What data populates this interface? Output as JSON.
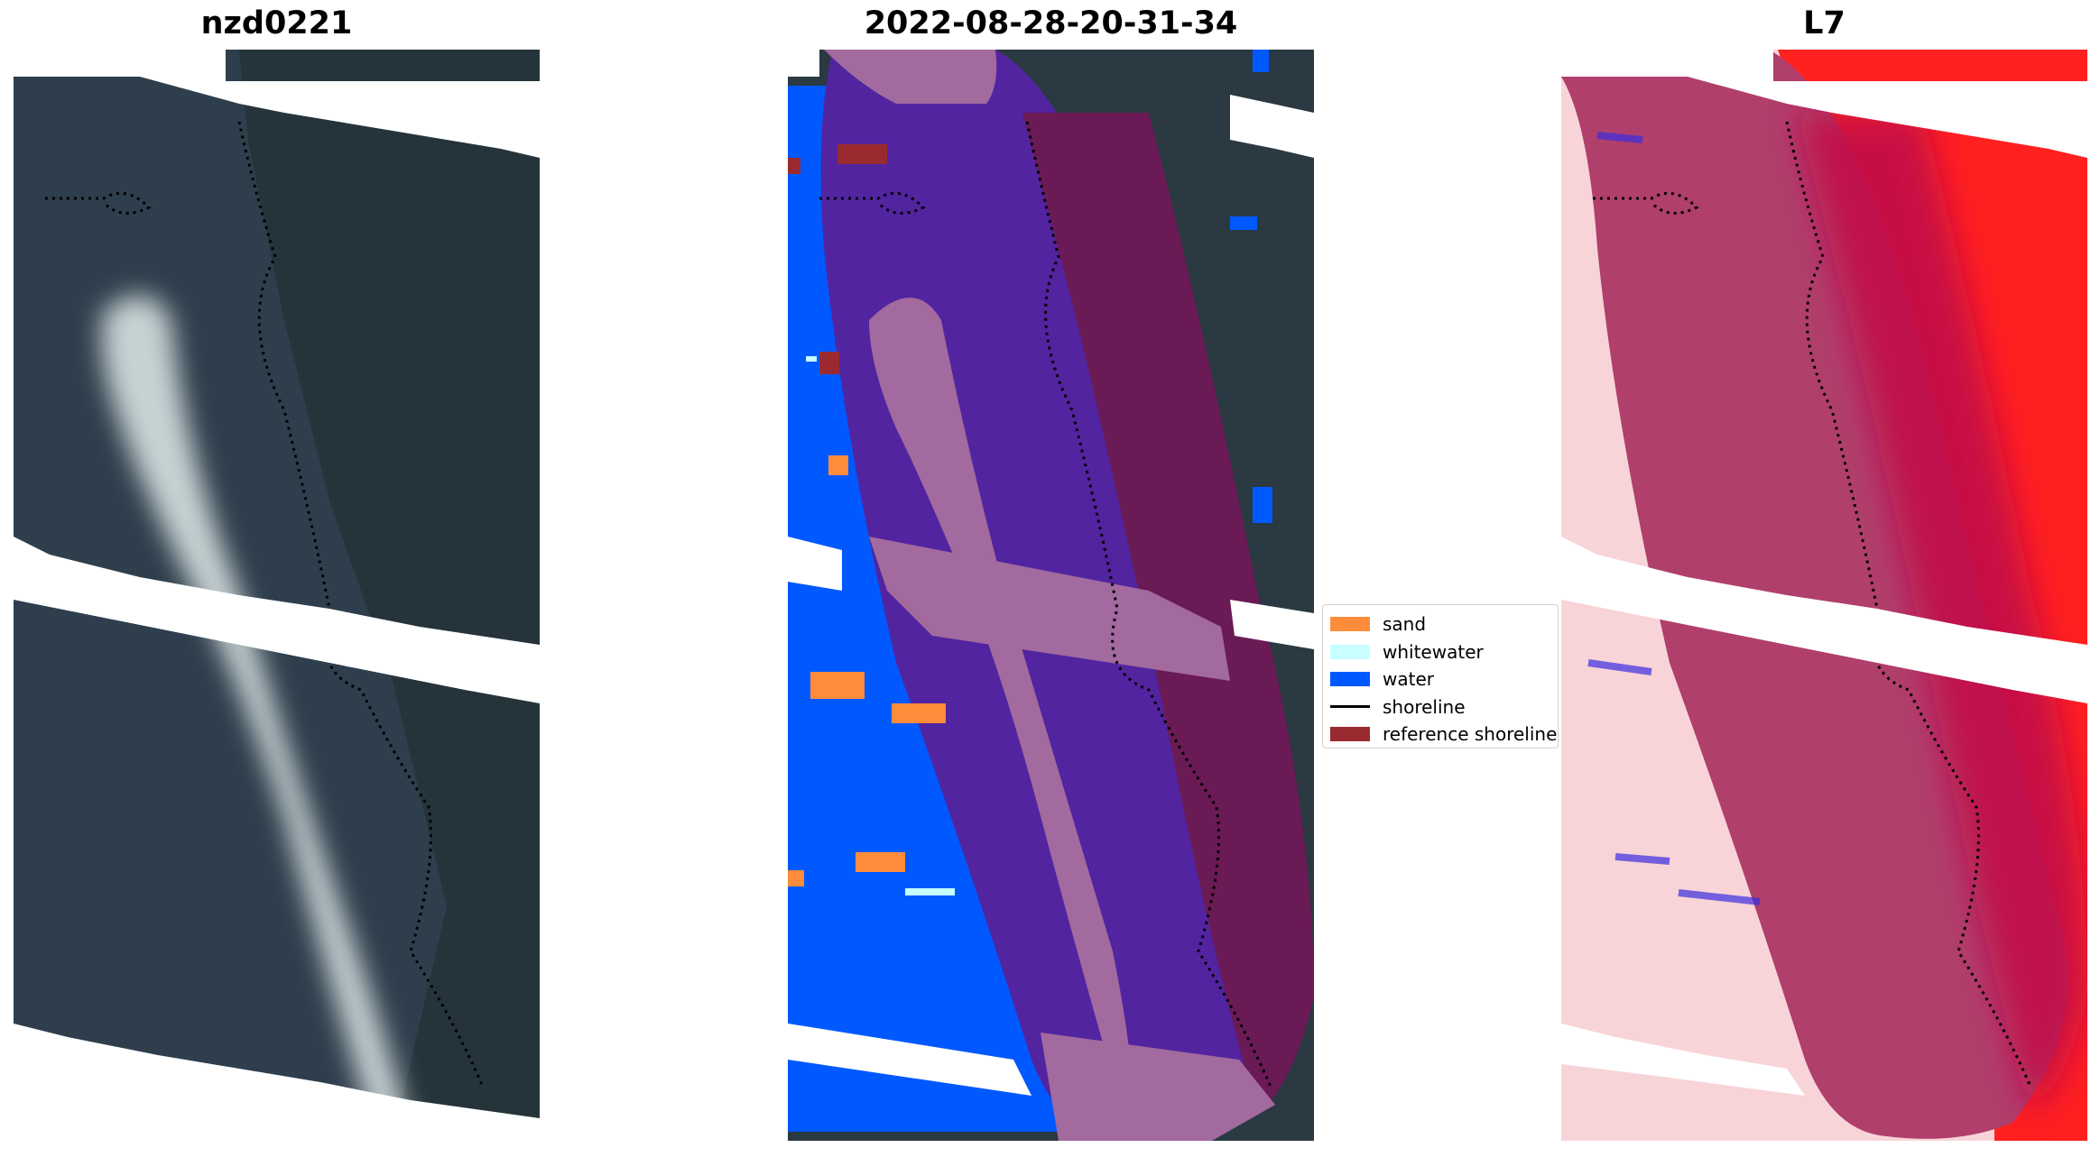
{
  "panels": [
    {
      "title": "nzd0221"
    },
    {
      "title": "2022-08-28-20-31-34"
    },
    {
      "title": "L7"
    }
  ],
  "legend": {
    "items": [
      {
        "label": "sand",
        "color": "#ff8c3a",
        "kind": "patch"
      },
      {
        "label": "whitewater",
        "color": "#c8ffff",
        "kind": "patch"
      },
      {
        "label": "water",
        "color": "#0059ff",
        "kind": "patch"
      },
      {
        "label": "shoreline",
        "color": "#000000",
        "kind": "line"
      },
      {
        "label": "reference shoreline",
        "color": "#9b2a30",
        "kind": "patch"
      }
    ]
  },
  "colors": {
    "rgb_water": "#2e3e4c",
    "rgb_land": "#25343a",
    "rgb_surf": "#d8e2e2",
    "class_water": "#0059ff",
    "class_buffer": "#5224a0",
    "class_whitewater_buffer": "#a26a9e",
    "class_land_dark": "#6a1a55",
    "index_red": "#ff2020",
    "index_pink": "#f8d4d8",
    "index_band": "#b03f6c",
    "index_dark": "#c2104a"
  }
}
